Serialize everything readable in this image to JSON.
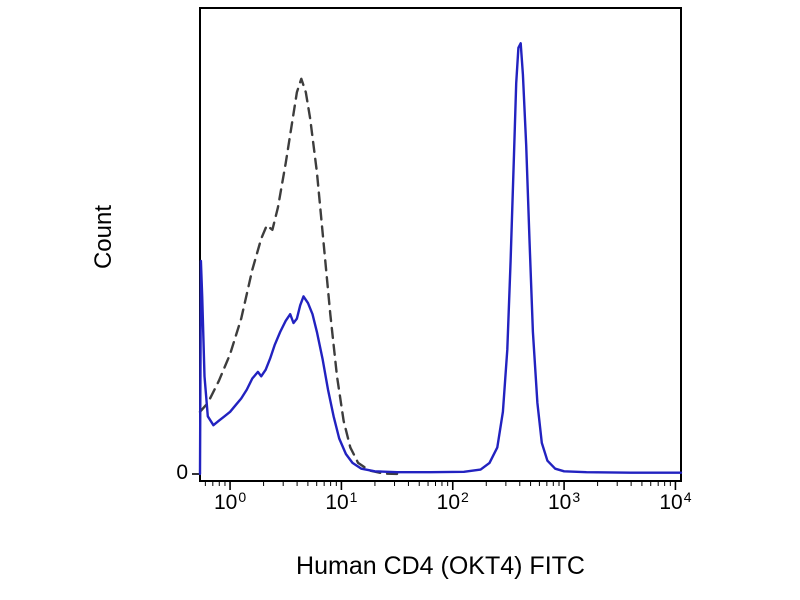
{
  "page": {
    "background": "#ffffff"
  },
  "chart": {
    "xlabel": "Human CD4 (OKT4) FITC",
    "ylabel": "Count",
    "y_zero_label": "0",
    "x_ticks": [
      {
        "base": "10",
        "exp": "0",
        "log10": 0
      },
      {
        "base": "10",
        "exp": "1",
        "log10": 1
      },
      {
        "base": "10",
        "exp": "2",
        "log10": 2
      },
      {
        "base": "10",
        "exp": "3",
        "log10": 3
      },
      {
        "base": "10",
        "exp": "4",
        "log10": 4
      }
    ],
    "colors": {
      "border": "#000000",
      "text": "#000000",
      "dashed_curve": "#3d3d3d",
      "solid_curve": "#2222c0"
    }
  },
  "chart_data": {
    "type": "line",
    "title": "",
    "xlabel": "Human CD4 (OKT4) FITC",
    "ylabel": "Count",
    "x_scale": "log10",
    "xlim_log10": [
      -0.27,
      4.05
    ],
    "ylim": [
      0,
      100
    ],
    "grid": false,
    "legend": "none",
    "y_units": "normalized count (0-100)",
    "series": [
      {
        "name": "dashed dark-gray curve (unstained control)",
        "line_style": "dashed",
        "color": "#3d3d3d",
        "points": [
          [
            -0.27,
            14
          ],
          [
            -0.2,
            16
          ],
          [
            -0.1,
            21
          ],
          [
            0.0,
            27
          ],
          [
            0.1,
            35
          ],
          [
            0.2,
            46
          ],
          [
            0.28,
            53
          ],
          [
            0.33,
            56
          ],
          [
            0.38,
            55
          ],
          [
            0.43,
            60
          ],
          [
            0.5,
            70
          ],
          [
            0.55,
            78
          ],
          [
            0.6,
            86
          ],
          [
            0.64,
            89
          ],
          [
            0.68,
            86
          ],
          [
            0.72,
            80
          ],
          [
            0.78,
            68
          ],
          [
            0.84,
            52
          ],
          [
            0.9,
            36
          ],
          [
            0.96,
            22
          ],
          [
            1.02,
            12
          ],
          [
            1.08,
            6
          ],
          [
            1.15,
            2.5
          ],
          [
            1.25,
            0.8
          ],
          [
            1.38,
            0.1
          ],
          [
            1.55,
            0
          ]
        ]
      },
      {
        "name": "solid blue curve (CD4 OKT4 FITC stained)",
        "line_style": "solid",
        "color": "#2222c0",
        "points": [
          [
            -0.27,
            0
          ],
          [
            -0.262,
            48
          ],
          [
            -0.25,
            40
          ],
          [
            -0.23,
            22
          ],
          [
            -0.2,
            13
          ],
          [
            -0.15,
            11
          ],
          [
            -0.1,
            12
          ],
          [
            -0.05,
            13
          ],
          [
            0.0,
            14
          ],
          [
            0.05,
            15.5
          ],
          [
            0.1,
            17
          ],
          [
            0.15,
            19
          ],
          [
            0.2,
            21.5
          ],
          [
            0.25,
            23
          ],
          [
            0.28,
            22
          ],
          [
            0.32,
            23.5
          ],
          [
            0.36,
            26
          ],
          [
            0.4,
            29
          ],
          [
            0.45,
            32
          ],
          [
            0.5,
            34.5
          ],
          [
            0.54,
            36
          ],
          [
            0.57,
            34
          ],
          [
            0.6,
            35
          ],
          [
            0.63,
            38
          ],
          [
            0.66,
            40
          ],
          [
            0.7,
            38.5
          ],
          [
            0.74,
            36
          ],
          [
            0.78,
            32
          ],
          [
            0.83,
            26
          ],
          [
            0.88,
            19
          ],
          [
            0.93,
            13
          ],
          [
            0.98,
            8
          ],
          [
            1.04,
            4.5
          ],
          [
            1.1,
            2.5
          ],
          [
            1.18,
            1.2
          ],
          [
            1.3,
            0.6
          ],
          [
            1.5,
            0.4
          ],
          [
            1.8,
            0.4
          ],
          [
            2.1,
            0.5
          ],
          [
            2.25,
            1
          ],
          [
            2.33,
            2.5
          ],
          [
            2.4,
            6
          ],
          [
            2.45,
            14
          ],
          [
            2.49,
            28
          ],
          [
            2.52,
            48
          ],
          [
            2.55,
            72
          ],
          [
            2.57,
            88
          ],
          [
            2.59,
            96
          ],
          [
            2.61,
            97
          ],
          [
            2.63,
            90
          ],
          [
            2.66,
            74
          ],
          [
            2.69,
            52
          ],
          [
            2.72,
            32
          ],
          [
            2.76,
            16
          ],
          [
            2.8,
            7
          ],
          [
            2.85,
            3
          ],
          [
            2.92,
            1.2
          ],
          [
            3.0,
            0.6
          ],
          [
            3.2,
            0.4
          ],
          [
            3.6,
            0.3
          ],
          [
            4.05,
            0.3
          ]
        ]
      }
    ]
  }
}
